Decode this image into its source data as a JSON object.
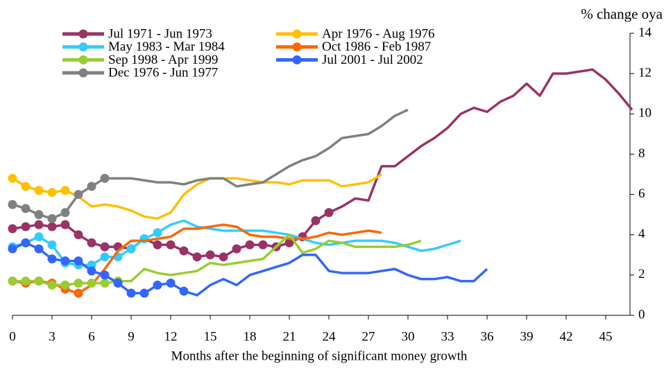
{
  "chart_data": {
    "type": "line",
    "y_axis_label": "% change oya",
    "x_axis_label": "Months after the beginning of significant money growth",
    "x": [
      0,
      1,
      2,
      3,
      4,
      5,
      6,
      7,
      8,
      9,
      10,
      11,
      12,
      13,
      14,
      15,
      16,
      17,
      18,
      19,
      20,
      21,
      22,
      23,
      24,
      25,
      26,
      27,
      28,
      29,
      30,
      31,
      32,
      33,
      34,
      35,
      36,
      37,
      38,
      39,
      40,
      41,
      42,
      43,
      44,
      45,
      46,
      47
    ],
    "xlim": [
      0,
      47
    ],
    "xticks": [
      0,
      3,
      6,
      9,
      12,
      15,
      18,
      21,
      24,
      27,
      30,
      33,
      36,
      39,
      42,
      45
    ],
    "ylim": [
      0,
      14
    ],
    "yticks": [
      0,
      2,
      4,
      6,
      8,
      10,
      12,
      14
    ],
    "y_axis_side": "right",
    "series": [
      {
        "name": "Jul 1971 - Jun 1973",
        "color": "#993366",
        "marker_points": 25,
        "values": [
          4.3,
          4.4,
          4.5,
          4.4,
          4.5,
          4.0,
          3.6,
          3.4,
          3.4,
          3.3,
          3.8,
          3.5,
          3.5,
          3.2,
          2.9,
          3.0,
          2.9,
          3.3,
          3.5,
          3.5,
          3.4,
          3.6,
          3.9,
          4.7,
          5.1,
          5.4,
          5.8,
          5.7,
          7.4,
          7.4,
          7.9,
          8.4,
          8.8,
          9.3,
          10.0,
          10.3,
          10.1,
          10.6,
          10.9,
          11.5,
          10.9,
          12.0,
          12.0,
          12.1,
          12.2,
          11.7,
          11.0,
          10.2
        ]
      },
      {
        "name": "Apr 1976 - Aug 1976",
        "color": "#ffc000",
        "marker_points": 5,
        "values": [
          6.8,
          6.4,
          6.2,
          6.1,
          6.2,
          5.9,
          5.4,
          5.5,
          5.4,
          5.2,
          4.9,
          4.8,
          5.1,
          6.0,
          6.5,
          6.8,
          6.8,
          6.8,
          6.7,
          6.6,
          6.6,
          6.5,
          6.7,
          6.7,
          6.7,
          6.4,
          6.5,
          6.6,
          7.0,
          null,
          null,
          null,
          null,
          null,
          null,
          null,
          null,
          null,
          null,
          null,
          null,
          null,
          null,
          null,
          null,
          null,
          null,
          null
        ]
      },
      {
        "name": "May 1983 - Mar 1984",
        "color": "#33ccff",
        "marker_points": 12,
        "values": [
          3.4,
          3.6,
          3.9,
          3.5,
          2.6,
          2.5,
          2.5,
          2.9,
          2.9,
          3.3,
          3.8,
          4.1,
          4.5,
          4.7,
          4.4,
          4.3,
          4.2,
          4.2,
          4.2,
          4.2,
          4.1,
          4.0,
          3.8,
          3.6,
          3.5,
          3.6,
          3.7,
          3.7,
          3.7,
          3.6,
          3.4,
          3.2,
          3.3,
          3.5,
          3.7,
          null,
          null,
          null,
          null,
          null,
          null,
          null,
          null,
          null,
          null,
          null,
          null,
          null
        ]
      },
      {
        "name": "Oct 1986 - Feb 1987",
        "color": "#ff6600",
        "marker_points": 6,
        "values": [
          1.7,
          1.6,
          1.7,
          1.6,
          1.3,
          1.1,
          1.5,
          2.3,
          3.2,
          3.7,
          3.7,
          3.8,
          3.9,
          4.3,
          4.3,
          4.4,
          4.5,
          4.4,
          4.0,
          3.9,
          3.9,
          3.8,
          3.8,
          3.9,
          4.1,
          4.0,
          4.1,
          4.2,
          4.1,
          null,
          null,
          null,
          null,
          null,
          null,
          null,
          null,
          null,
          null,
          null,
          null,
          null,
          null,
          null,
          null,
          null,
          null,
          null
        ]
      },
      {
        "name": "Sep 1998 - Apr 1999",
        "color": "#99cc33",
        "marker_points": 9,
        "values": [
          1.7,
          1.7,
          1.7,
          1.5,
          1.5,
          1.6,
          1.6,
          1.6,
          1.7,
          1.7,
          2.3,
          2.1,
          2.0,
          2.1,
          2.2,
          2.6,
          2.5,
          2.6,
          2.7,
          2.8,
          3.4,
          4.0,
          3.1,
          3.3,
          3.7,
          3.6,
          3.4,
          3.4,
          3.4,
          3.4,
          3.5,
          3.7,
          null,
          null,
          null,
          null,
          null,
          null,
          null,
          null,
          null,
          null,
          null,
          null,
          null,
          null,
          null,
          null
        ]
      },
      {
        "name": "Jul 2001 - Jul 2002",
        "color": "#3366ff",
        "marker_points": 14,
        "values": [
          3.3,
          3.6,
          3.3,
          2.8,
          2.7,
          2.7,
          2.2,
          2.0,
          1.6,
          1.1,
          1.1,
          1.5,
          1.6,
          1.2,
          1.0,
          1.5,
          1.8,
          1.5,
          2.0,
          2.2,
          2.4,
          2.6,
          3.0,
          3.0,
          2.2,
          2.1,
          2.1,
          2.1,
          2.2,
          2.3,
          2.0,
          1.8,
          1.8,
          1.9,
          1.7,
          1.7,
          2.3,
          null,
          null,
          null,
          null,
          null,
          null,
          null,
          null,
          null,
          null,
          null
        ]
      },
      {
        "name": "Dec 1976 - Jun 1977",
        "color": "#808080",
        "marker_points": 8,
        "values": [
          5.5,
          5.3,
          5.0,
          4.8,
          5.1,
          6.0,
          6.4,
          6.8,
          6.8,
          6.8,
          6.7,
          6.6,
          6.6,
          6.5,
          6.7,
          6.8,
          6.8,
          6.4,
          6.5,
          6.6,
          7.0,
          7.4,
          7.7,
          7.9,
          8.3,
          8.8,
          8.9,
          9.0,
          9.4,
          9.9,
          10.2,
          null,
          null,
          null,
          null,
          null,
          null,
          null,
          null,
          null,
          null,
          null,
          null,
          null,
          null,
          null,
          null,
          null
        ]
      }
    ],
    "legend_columns": 2
  }
}
